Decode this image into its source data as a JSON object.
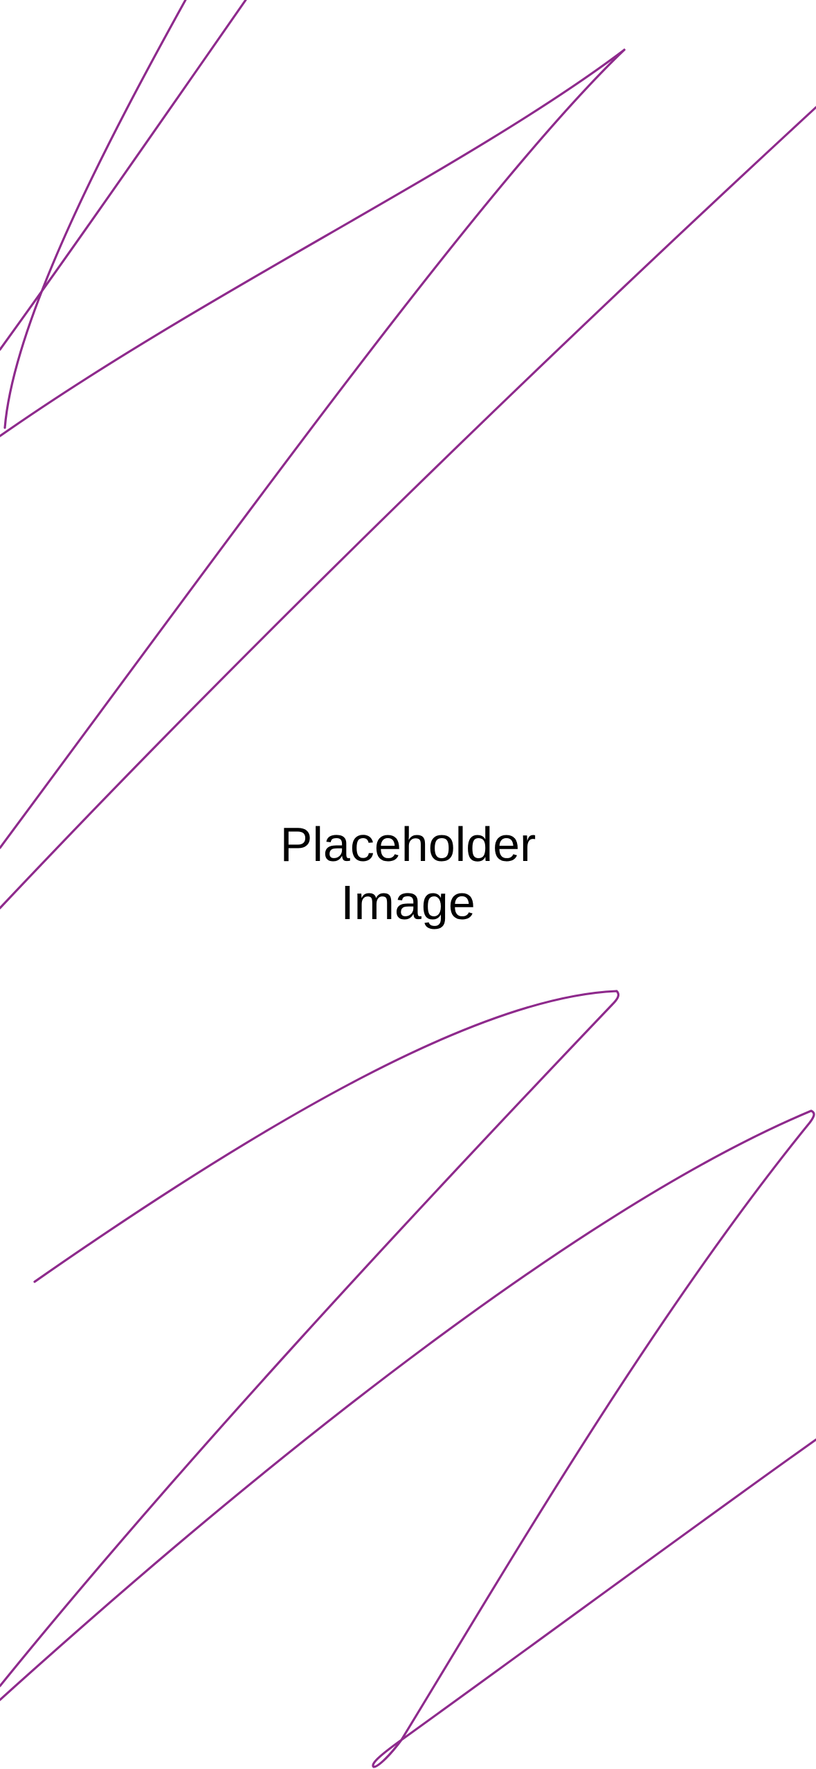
{
  "placeholder": {
    "line1": "Placeholder",
    "line2": "Image"
  },
  "colors": {
    "background": "#ffffff",
    "scribble": "#8e2a8c",
    "text": "#000000"
  }
}
